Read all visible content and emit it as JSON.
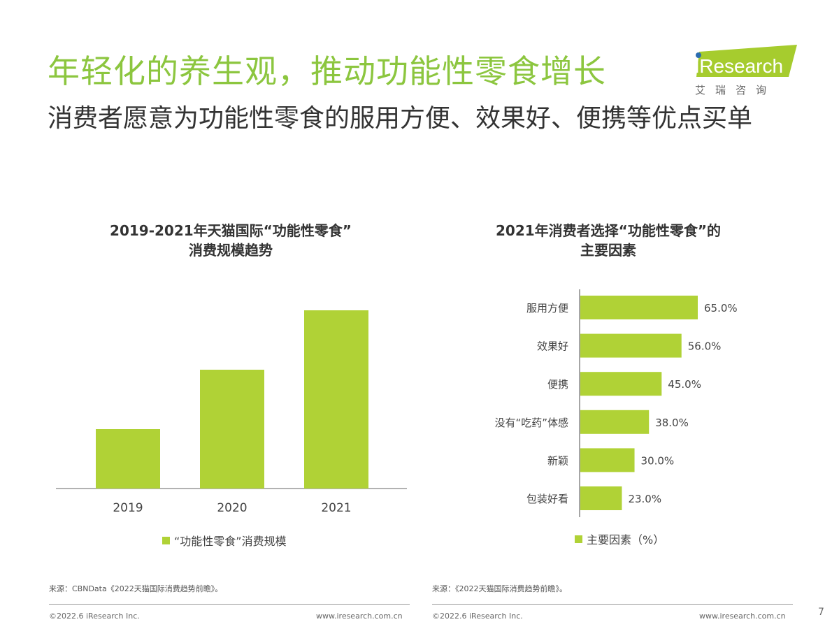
{
  "title": "年轻化的养生观，推动功能性零食增长",
  "subtitle": "消费者愿意为功能性零食的服用方便、效果好、便携等优点买单",
  "logo": {
    "text": "iResearch",
    "cn": "艾 瑞 咨 询"
  },
  "colors": {
    "accent": "#8cc63f",
    "bar": "#b0d236"
  },
  "chart_data": [
    {
      "type": "bar",
      "title": "2019-2021年天猫国际“功能性零食”消费规模趋势",
      "title_lines": [
        "2019-2021年天猫国际“功能性零食”",
        "消费规模趋势"
      ],
      "categories": [
        "2019",
        "2020",
        "2021"
      ],
      "series": [
        {
          "name": "“功能性零食”消费规模",
          "values": [
            1,
            2,
            3
          ]
        }
      ],
      "note": "relative values (no axis printed)",
      "legend": "bottom"
    },
    {
      "type": "bar",
      "orientation": "horizontal",
      "title": "2021年消费者选择“功能性零食”的主要因素",
      "title_lines": [
        "2021年消费者选择“功能性零食”的",
        "主要因素"
      ],
      "categories": [
        "服用方便",
        "效果好",
        "便携",
        "没有“吃药”体感",
        "新颖",
        "包装好看"
      ],
      "series": [
        {
          "name": "主要因素（%）",
          "values": [
            65.0,
            56.0,
            45.0,
            38.0,
            30.0,
            23.0
          ]
        }
      ],
      "data_labels": [
        "65.0%",
        "56.0%",
        "45.0%",
        "38.0%",
        "30.0%",
        "23.0%"
      ],
      "legend": "bottom"
    }
  ],
  "sources": {
    "left": "来源：CBNData《2022天猫国际消费趋势前瞻》。",
    "right": "来源：《2022天猫国际消费趋势前瞻》。"
  },
  "footer": {
    "copyright": "©2022.6 iResearch Inc.",
    "url": "www.iresearch.com.cn",
    "page": "7"
  }
}
